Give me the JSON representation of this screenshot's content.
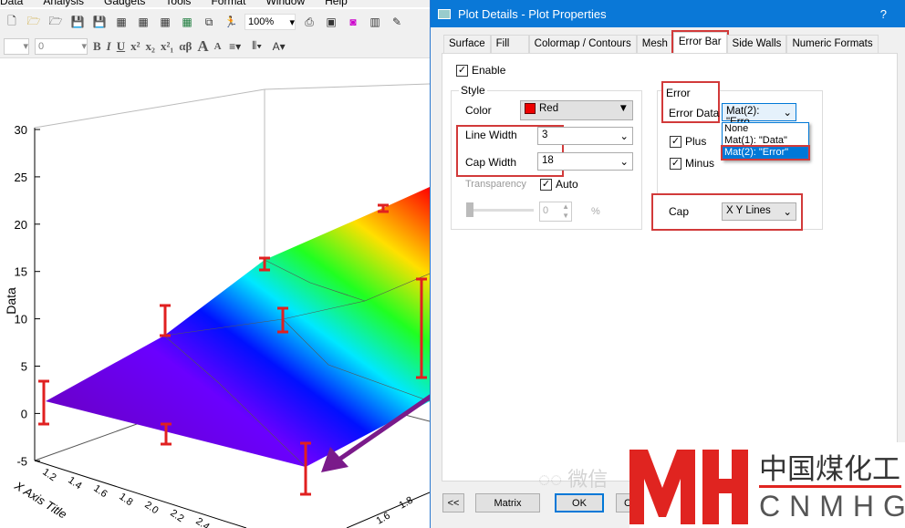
{
  "menu": [
    "Data",
    "Analysis",
    "Gadgets",
    "Tools",
    "Format",
    "Window",
    "Help"
  ],
  "toolbar": {
    "zoom": "100%",
    "font_size": "0",
    "format_buttons": [
      "B",
      "I",
      "U",
      "x²",
      "x₂",
      "x²₁",
      "αβ",
      "A",
      "A"
    ]
  },
  "graph": {
    "z_ticks": [
      "30",
      "25",
      "20",
      "15",
      "10",
      "5",
      "0",
      "-5"
    ],
    "z_label": "Data",
    "x_ticks": [
      "1.2",
      "1.4",
      "1.6",
      "1.8",
      "2.0",
      "2.2",
      "2.4"
    ],
    "x_label": "X Axis Title",
    "y_ticks": [
      "1.6",
      "1.8"
    ],
    "error_bar_color": "#e02020"
  },
  "dialog": {
    "title": "Plot Details - Plot Properties",
    "help": "?",
    "tabs": [
      "Surface",
      "Fill",
      "Colormap / Contours",
      "Mesh",
      "Error Bar",
      "Side Walls",
      "Numeric Formats"
    ],
    "active_tab": "Error Bar",
    "enable_label": "Enable",
    "enable_checked": true,
    "style": {
      "group": "Style",
      "color_label": "Color",
      "color_value": "Red",
      "color_swatch": "#ee0000",
      "line_width_label": "Line Width",
      "line_width": "3",
      "cap_width_label": "Cap Width",
      "cap_width": "18",
      "transparency_label": "Transparency",
      "auto_label": "Auto",
      "auto_checked": true,
      "transparency_value": "0",
      "percent": "%"
    },
    "error": {
      "group": "Error",
      "error_data_label": "Error Data",
      "error_data_value": "Mat(2): \"Erro",
      "options": [
        "None",
        "Mat(1): \"Data\"",
        "Mat(2): \"Error\""
      ],
      "selected_option": "Mat(2): \"Error\"",
      "plus_label": "Plus",
      "plus_checked": true,
      "minus_label": "Minus",
      "minus_checked": true,
      "cap_label": "Cap",
      "cap_value": "X Y Lines"
    },
    "buttons": {
      "collapse": "<<",
      "matrix": "Matrix",
      "ok": "OK",
      "cancel": "C"
    }
  },
  "watermark": {
    "wechat": "微信",
    "logo_cn": "中国煤化工",
    "logo_en": "CNMHG",
    "logo_mark": "MH"
  }
}
